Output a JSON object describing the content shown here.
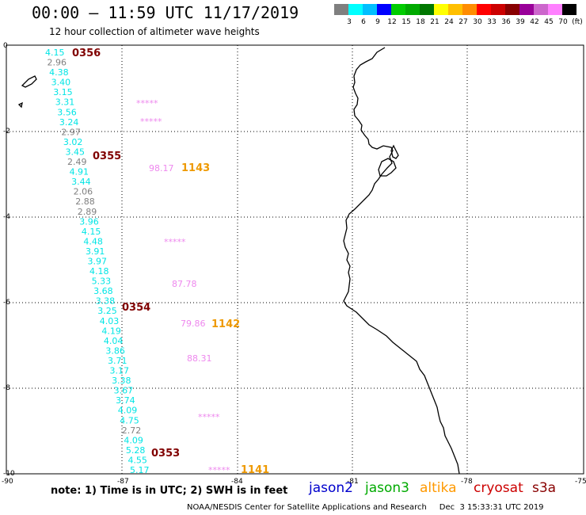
{
  "header": {
    "title": "00:00 — 11:59 UTC 11/17/2019",
    "subtitle": "12 hour collection of altimeter wave heights"
  },
  "legend": {
    "colors": [
      "#7f7f7f",
      "#00ffff",
      "#00bfff",
      "#0000ff",
      "#00cc00",
      "#00aa00",
      "#007700",
      "#ffff00",
      "#ffbf00",
      "#ff8c00",
      "#ff0000",
      "#cc0000",
      "#880000",
      "#990099",
      "#cc66cc",
      "#ff80ff",
      "#000000"
    ],
    "labels": [
      "3",
      "6",
      "9",
      "12",
      "15",
      "18",
      "21",
      "24",
      "27",
      "30",
      "33",
      "36",
      "39",
      "42",
      "45",
      "70"
    ],
    "unit": "(ft)"
  },
  "axes": {
    "y_ticks": [
      "0",
      "-2",
      "-4",
      "-6",
      "-8",
      "-10"
    ],
    "x_ticks": [
      "-90",
      "-87",
      "-84",
      "-81",
      "-78",
      "-75"
    ]
  },
  "tracks": {
    "t0356": {
      "label": "0356",
      "values": [
        {
          "v": "4.15",
          "c": "#00e5e5"
        },
        {
          "v": "2.96",
          "c": "#808080"
        },
        {
          "v": "4.38",
          "c": "#00e5e5"
        },
        {
          "v": "3.40",
          "c": "#00e5e5"
        },
        {
          "v": "3.15",
          "c": "#00e5e5"
        },
        {
          "v": "3.31",
          "c": "#00e5e5"
        },
        {
          "v": "3.56",
          "c": "#00e5e5"
        },
        {
          "v": "3.24",
          "c": "#00e5e5"
        },
        {
          "v": "2.97",
          "c": "#808080"
        },
        {
          "v": "3.02",
          "c": "#00e5e5"
        },
        {
          "v": "3.45",
          "c": "#00e5e5"
        },
        {
          "v": "2.49",
          "c": "#808080"
        },
        {
          "v": "4.91",
          "c": "#00e5e5"
        },
        {
          "v": "3.44",
          "c": "#00e5e5"
        },
        {
          "v": "2.06",
          "c": "#808080"
        },
        {
          "v": "2.88",
          "c": "#808080"
        },
        {
          "v": "2.89",
          "c": "#808080"
        },
        {
          "v": "3.96",
          "c": "#00e5e5"
        },
        {
          "v": "4.15",
          "c": "#00e5e5"
        },
        {
          "v": "4.48",
          "c": "#00e5e5"
        },
        {
          "v": "3.91",
          "c": "#00e5e5"
        },
        {
          "v": "3.97",
          "c": "#00e5e5"
        },
        {
          "v": "4.18",
          "c": "#00e5e5"
        },
        {
          "v": "5.33",
          "c": "#00e5e5"
        },
        {
          "v": "3.68",
          "c": "#00e5e5"
        },
        {
          "v": "3.38",
          "c": "#00e5e5"
        },
        {
          "v": "3.25",
          "c": "#00e5e5"
        },
        {
          "v": "4.03",
          "c": "#00e5e5"
        },
        {
          "v": "4.19",
          "c": "#00e5e5"
        },
        {
          "v": "4.04",
          "c": "#00e5e5"
        },
        {
          "v": "3.86",
          "c": "#00e5e5"
        },
        {
          "v": "3.71",
          "c": "#00e5e5"
        },
        {
          "v": "3.17",
          "c": "#00e5e5"
        },
        {
          "v": "3.38",
          "c": "#00e5e5"
        },
        {
          "v": "3.67",
          "c": "#00e5e5"
        },
        {
          "v": "3.74",
          "c": "#00e5e5"
        },
        {
          "v": "4.09",
          "c": "#00e5e5"
        },
        {
          "v": "4.75",
          "c": "#00e5e5"
        },
        {
          "v": "2.72",
          "c": "#808080"
        },
        {
          "v": "4.09",
          "c": "#00e5e5"
        },
        {
          "v": "5.28",
          "c": "#00e5e5"
        },
        {
          "v": "4.55",
          "c": "#00e5e5"
        },
        {
          "v": "5.17",
          "c": "#00e5e5"
        }
      ]
    },
    "tlabels": [
      "0356",
      "0355",
      "0354",
      "0353"
    ],
    "t1143": {
      "label_a": "1143",
      "label_b": "1142",
      "label_c": "1141",
      "values": [
        "*****",
        "*****",
        "98.17",
        "*****",
        "87.78",
        "79.86",
        "88.31",
        "*****",
        "*****"
      ]
    }
  },
  "footer": {
    "note": "note: 1) Time is in UTC; 2) SWH is in feet",
    "satellites": [
      {
        "name": "jason2",
        "color": "#0000cc"
      },
      {
        "name": "jason3",
        "color": "#00aa00"
      },
      {
        "name": "altika",
        "color": "#ff9900"
      },
      {
        "name": "cryosat",
        "color": "#cc0000"
      },
      {
        "name": "s3a",
        "color": "#880000"
      }
    ],
    "credit": "NOAA/NESDIS Center for Satellite Applications and Research     Dec  3 15:33:31 UTC 2019"
  }
}
